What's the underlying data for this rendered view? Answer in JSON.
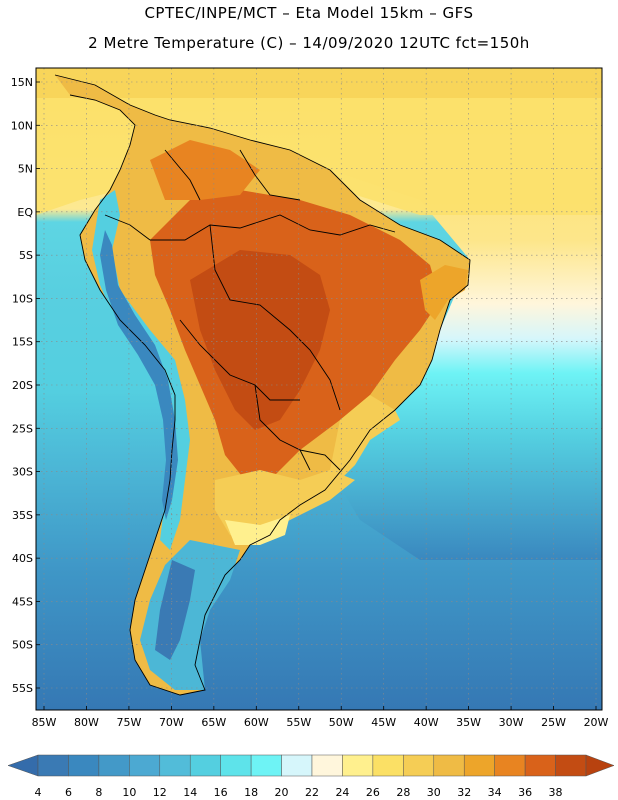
{
  "header": {
    "line1": "CPTEC/INPE/MCT –  Eta Model 15km – GFS",
    "line2": "2 Metre Temperature (C) – 14/09/2020 12UTC fct=150h"
  },
  "map": {
    "lat_labels": [
      "15N",
      "10N",
      "5N",
      "EQ",
      "5S",
      "10S",
      "15S",
      "20S",
      "25S",
      "30S",
      "35S",
      "40S",
      "45S",
      "50S",
      "55S"
    ],
    "lon_labels": [
      "85W",
      "80W",
      "75W",
      "70W",
      "65W",
      "60W",
      "55W",
      "50W",
      "45W",
      "40W",
      "35W",
      "30W",
      "25W",
      "20W"
    ],
    "lat_values": [
      15,
      10,
      5,
      0,
      -5,
      -10,
      -15,
      -20,
      -25,
      -30,
      -35,
      -40,
      -45,
      -50,
      -55
    ],
    "lon_values": [
      -85,
      -80,
      -75,
      -70,
      -65,
      -60,
      -55,
      -50,
      -45,
      -40,
      -35,
      -30,
      -25,
      -20
    ]
  },
  "colorbar": {
    "labels": [
      "4",
      "6",
      "8",
      "10",
      "12",
      "14",
      "16",
      "18",
      "20",
      "22",
      "24",
      "26",
      "28",
      "30",
      "32",
      "34",
      "36",
      "38"
    ],
    "colors": [
      "#3a7ab4",
      "#3a88bf",
      "#4399c8",
      "#4ca9d2",
      "#52bcd9",
      "#54cfe0",
      "#5ee3ea",
      "#6ef3f5",
      "#d6f6fb",
      "#fff6dc",
      "#fff08e",
      "#fbe065",
      "#f5cd55",
      "#efbb45",
      "#eda52a",
      "#e88421",
      "#d9621a",
      "#c34c13"
    ],
    "under_color": "#346cab",
    "over_color": "#b8420f"
  }
}
